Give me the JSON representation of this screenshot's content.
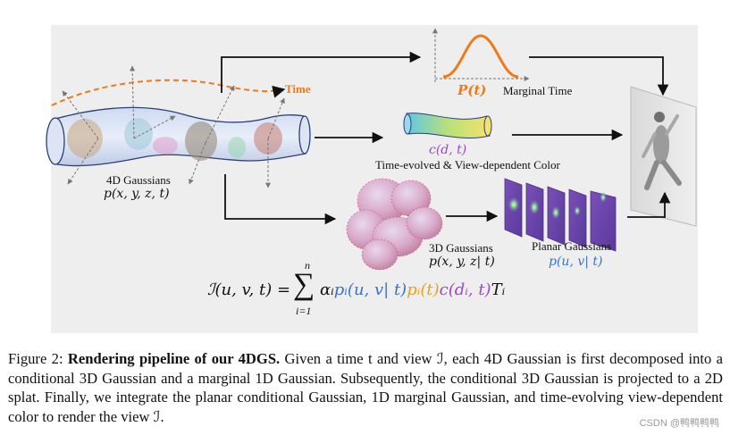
{
  "figure": {
    "time_label": "Time",
    "marginal_time": {
      "symbol": "P(t)",
      "label": "Marginal Time"
    },
    "color_module": {
      "symbol": "c(d, t)",
      "label": "Time-evolved & View-dependent Color"
    },
    "gaussians_4d": {
      "label": "4D Gaussians",
      "symbol": "p(x, y, z, t)"
    },
    "gaussians_3d": {
      "label": "3D Gaussians",
      "symbol": "p(x, y, z| t)"
    },
    "planar_gaussians": {
      "label": "Planar Gaussians",
      "symbol": "p(u, v| t)"
    },
    "equation": {
      "lhs": "ℐ(u, v, t) =",
      "sum_upper": "n",
      "sum_lower": "i=1",
      "alpha": "αᵢ",
      "planar_term": "pᵢ(u, v| t)",
      "time_term": "pᵢ(t)",
      "color_term": "c(dᵢ, t)",
      "transmittance": "Tᵢ"
    },
    "colors": {
      "panel_bg": "#eeeeee",
      "time_curve": "#f07a19",
      "color_term": "#9c46c8",
      "planar_term": "#3a72c8",
      "time_term": "#e8a21a"
    }
  },
  "caption": {
    "prefix": "Figure 2: ",
    "bold": "Rendering pipeline of our 4DGS.",
    "body": " Given a time t and view ℐ, each 4D Gaussian is first decomposed into a conditional 3D Gaussian and a marginal 1D Gaussian. Subsequently, the conditional 3D Gaussian is projected to a 2D splat. Finally, we integrate the planar conditional Gaussian, 1D marginal Gaussian, and time-evolving view-dependent color to render the view ℐ."
  },
  "watermark": "CSDN @鸭鸭鸭鸭"
}
